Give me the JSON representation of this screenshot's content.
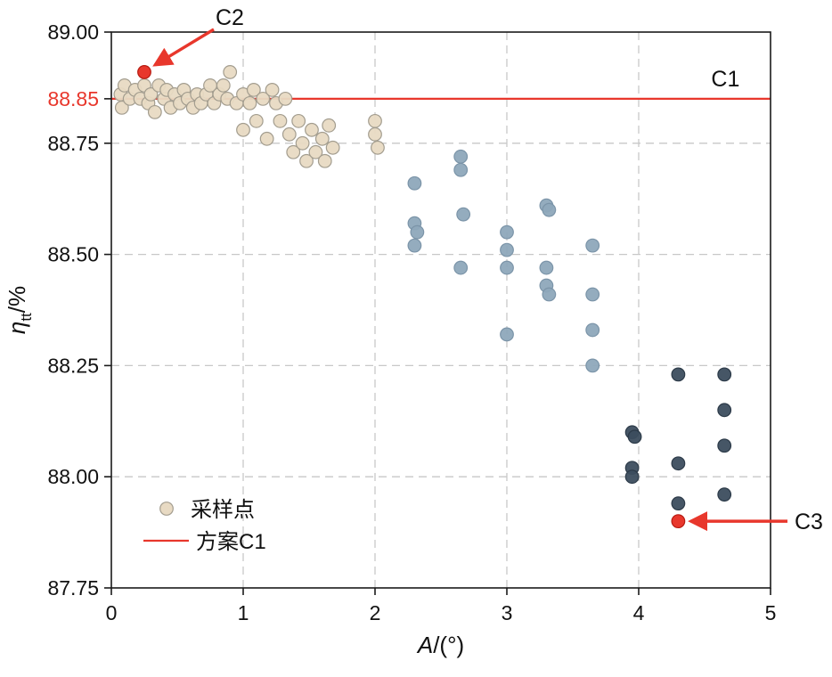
{
  "chart_data": {
    "type": "scatter",
    "title": "",
    "xlabel": "A/(°)",
    "ylabel": "η_tt/%",
    "xlabel_parts": {
      "italic": "A",
      "rest": "/(°)"
    },
    "ylabel_parts": {
      "italic": "η",
      "sub": "tt",
      "rest": "/%"
    },
    "xlim": [
      0,
      5
    ],
    "ylim": [
      87.75,
      89.0
    ],
    "x_ticks": [
      {
        "v": 0,
        "label": "0"
      },
      {
        "v": 1,
        "label": "1"
      },
      {
        "v": 2,
        "label": "2"
      },
      {
        "v": 3,
        "label": "3"
      },
      {
        "v": 4,
        "label": "4"
      },
      {
        "v": 5,
        "label": "5"
      }
    ],
    "y_ticks": [
      {
        "v": 89.0,
        "label": "89.00",
        "color": "#111111"
      },
      {
        "v": 88.85,
        "label": "88.85",
        "color": "#e8372c"
      },
      {
        "v": 88.75,
        "label": "88.75",
        "color": "#111111"
      },
      {
        "v": 88.5,
        "label": "88.50",
        "color": "#111111"
      },
      {
        "v": 88.25,
        "label": "88.25",
        "color": "#111111"
      },
      {
        "v": 88.0,
        "label": "88.00",
        "color": "#111111"
      },
      {
        "v": 87.75,
        "label": "87.75",
        "color": "#111111"
      }
    ],
    "grid": {
      "style": "dashed",
      "color": "#c8c8c8",
      "x_lines": [
        1,
        2,
        3,
        4
      ],
      "y_lines": [
        88.0,
        88.25,
        88.5,
        88.75
      ]
    },
    "reference_line": {
      "y": 88.85,
      "color": "#e8372c",
      "label": "C1"
    },
    "annotation_color": "#e8372c",
    "series": [
      {
        "name": "sample-points-low-A",
        "fill": "#e8dac3",
        "stroke": "#a39d8f",
        "points": [
          [
            0.07,
            88.86
          ],
          [
            0.08,
            88.83
          ],
          [
            0.1,
            88.88
          ],
          [
            0.14,
            88.85
          ],
          [
            0.18,
            88.87
          ],
          [
            0.22,
            88.85
          ],
          [
            0.25,
            88.88
          ],
          [
            0.28,
            88.84
          ],
          [
            0.3,
            88.86
          ],
          [
            0.33,
            88.82
          ],
          [
            0.36,
            88.88
          ],
          [
            0.4,
            88.85
          ],
          [
            0.42,
            88.87
          ],
          [
            0.45,
            88.83
          ],
          [
            0.48,
            88.86
          ],
          [
            0.52,
            88.84
          ],
          [
            0.55,
            88.87
          ],
          [
            0.58,
            88.85
          ],
          [
            0.62,
            88.83
          ],
          [
            0.65,
            88.86
          ],
          [
            0.68,
            88.84
          ],
          [
            0.72,
            88.86
          ],
          [
            0.75,
            88.88
          ],
          [
            0.78,
            88.84
          ],
          [
            0.82,
            88.86
          ],
          [
            0.85,
            88.88
          ],
          [
            0.88,
            88.85
          ],
          [
            0.9,
            88.91
          ],
          [
            0.95,
            88.84
          ],
          [
            1.0,
            88.86
          ],
          [
            1.0,
            88.78
          ],
          [
            1.05,
            88.84
          ],
          [
            1.08,
            88.87
          ],
          [
            1.1,
            88.8
          ],
          [
            1.15,
            88.85
          ],
          [
            1.18,
            88.76
          ],
          [
            1.22,
            88.87
          ],
          [
            1.25,
            88.84
          ],
          [
            1.28,
            88.8
          ],
          [
            1.32,
            88.85
          ],
          [
            1.35,
            88.77
          ],
          [
            1.38,
            88.73
          ],
          [
            1.42,
            88.8
          ],
          [
            1.45,
            88.75
          ],
          [
            1.48,
            88.71
          ],
          [
            1.52,
            88.78
          ],
          [
            1.55,
            88.73
          ],
          [
            1.6,
            88.76
          ],
          [
            1.62,
            88.71
          ],
          [
            1.65,
            88.79
          ],
          [
            1.68,
            88.74
          ],
          [
            2.0,
            88.8
          ],
          [
            2.0,
            88.77
          ],
          [
            2.02,
            88.74
          ]
        ]
      },
      {
        "name": "sample-points-mid-A",
        "fill": "#8ea8bb",
        "stroke": "#7b94a8",
        "points": [
          [
            2.3,
            88.66
          ],
          [
            2.3,
            88.57
          ],
          [
            2.32,
            88.55
          ],
          [
            2.3,
            88.52
          ],
          [
            2.65,
            88.72
          ],
          [
            2.65,
            88.69
          ],
          [
            2.67,
            88.59
          ],
          [
            2.65,
            88.47
          ],
          [
            3.0,
            88.55
          ],
          [
            3.0,
            88.51
          ],
          [
            3.0,
            88.47
          ],
          [
            3.0,
            88.32
          ],
          [
            3.3,
            88.61
          ],
          [
            3.32,
            88.6
          ],
          [
            3.3,
            88.47
          ],
          [
            3.3,
            88.43
          ],
          [
            3.32,
            88.41
          ],
          [
            3.65,
            88.52
          ],
          [
            3.65,
            88.41
          ],
          [
            3.65,
            88.33
          ],
          [
            3.65,
            88.25
          ]
        ]
      },
      {
        "name": "sample-points-high-A",
        "fill": "#3c4d5e",
        "stroke": "#2c3a48",
        "points": [
          [
            3.95,
            88.1
          ],
          [
            3.97,
            88.09
          ],
          [
            3.95,
            88.02
          ],
          [
            3.95,
            88.0
          ],
          [
            4.3,
            88.23
          ],
          [
            4.3,
            88.03
          ],
          [
            4.3,
            87.94
          ],
          [
            4.65,
            88.23
          ],
          [
            4.65,
            88.15
          ],
          [
            4.65,
            88.07
          ],
          [
            4.65,
            87.96
          ]
        ]
      }
    ],
    "highlight_points": [
      {
        "label": "C2",
        "x": 0.25,
        "y": 88.91,
        "color": "#e8372c"
      },
      {
        "label": "C3",
        "x": 4.3,
        "y": 87.9,
        "color": "#e8372c"
      }
    ],
    "annotations": [
      {
        "text": "C2",
        "color": "#111111",
        "arrow": true
      },
      {
        "text": "C1",
        "color": "#111111",
        "arrow": false
      },
      {
        "text": "C3",
        "color": "#111111",
        "arrow": true
      }
    ],
    "legend": {
      "position": "lower-left",
      "items": [
        {
          "marker": "circle",
          "label": "采样点",
          "fill": "#e8dac3",
          "stroke": "#a39d8f"
        },
        {
          "marker": "line",
          "label": "方案C1",
          "color": "#e8372c"
        }
      ]
    }
  }
}
